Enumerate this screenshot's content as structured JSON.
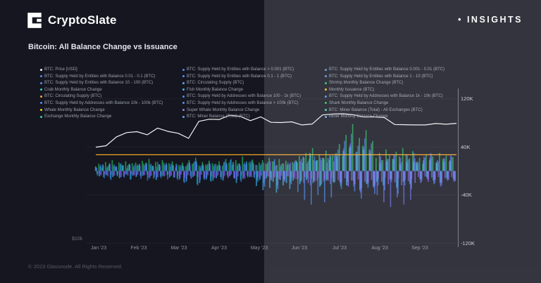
{
  "header": {
    "brand": "CryptoSlate",
    "insights_label": "• INSIGHTS"
  },
  "title": "Bitcoin: All Balance Change vs Issuance",
  "footer": {
    "copyright": "© 2023 Glassnode. All Rights Reserved."
  },
  "legend": {
    "columns": [
      {
        "items": [
          {
            "label": "BTC: Price [USD]",
            "color": "#f4f5f7"
          },
          {
            "label": "BTC: Supply Held by Entities with Balance 0.01 - 0.1 (BTC)",
            "color": "#5b8def"
          },
          {
            "label": "BTC: Supply Held by Entities with Balance 10 - 100 (BTC)",
            "color": "#5b8def"
          },
          {
            "label": "Crab Monthly Balance Change",
            "color": "#2dd4bf"
          },
          {
            "label": "BTC: Circulating Supply (BTC)",
            "color": "#f2a33c"
          },
          {
            "label": "BTC: Supply Held by Addresses with Balance 10k - 100k (BTC)",
            "color": "#5b8def"
          },
          {
            "label": "Whale Monthly Balance Change",
            "color": "#facc15"
          },
          {
            "label": "Exchange Monthly Balance Change",
            "color": "#2dd4bf"
          }
        ]
      },
      {
        "items": [
          {
            "label": "BTC: Supply Held by Entities with Balance > 0.001 (BTC)",
            "color": "#5b8def"
          },
          {
            "label": "BTC: Supply Held by Entities with Balance 0.1 - 1 (BTC)",
            "color": "#5b8def"
          },
          {
            "label": "BTC: Circulating Supply (BTC)",
            "color": "#60a5fa"
          },
          {
            "label": "Fish Monthly Balance Change",
            "color": "#38bdf8"
          },
          {
            "label": "BTC: Supply Held by Addresses with Balance 100 - 1k (BTC)",
            "color": "#5b8def"
          },
          {
            "label": "BTC: Supply Held by Addresses with Balance > 100k (BTC)",
            "color": "#5b8def"
          },
          {
            "label": "Super Whale Monthly Balance Change",
            "color": "#818cf8"
          },
          {
            "label": "BTC: Miner Balance (Total) (BTC)",
            "color": "#60a5fa"
          }
        ]
      },
      {
        "items": [
          {
            "label": "BTC: Supply Held by Entities with Balance 0.001 - 0.01 (BTC)",
            "color": "#5b8def"
          },
          {
            "label": "BTC: Supply Held by Entities with Balance 1 - 10 (BTC)",
            "color": "#5b8def"
          },
          {
            "label": "Shrimp Monthly Balance Change (BTC)",
            "color": "#22c55e"
          },
          {
            "label": "Monthly Issuance (BTC)",
            "color": "#fbbf24"
          },
          {
            "label": "BTC: Supply Held by Addresses with Balance 1k - 10k (BTC)",
            "color": "#5b8def"
          },
          {
            "label": "Shark Monthly Balance Change",
            "color": "#22c55e"
          },
          {
            "label": "BTC: Miner Balance (Total) - All Exchanges (BTC)",
            "color": "#34d399"
          },
          {
            "label": "Miner Monthly Balance Change",
            "color": "#60a5fa"
          }
        ]
      }
    ]
  },
  "chart_data": {
    "type": "mixed-bar-line",
    "title": "Bitcoin: All Balance Change vs Issuance",
    "x_labels": [
      "Jan '23",
      "Feb '23",
      "Mar '23",
      "Apr '23",
      "May '23",
      "Jun '23",
      "Jul '23",
      "Aug '23",
      "Sep '23"
    ],
    "y_tick_labels": [
      "120K",
      "40K",
      "-40K",
      "-120K"
    ],
    "y_tick_values": [
      120,
      40,
      -40,
      -120
    ],
    "ylim_k": [
      -140,
      140
    ],
    "price_axis_label": "$10k",
    "units": "thousand BTC per month (bars), USD (price line)",
    "issuance": {
      "name": "Monthly Issuance (BTC)",
      "value_k": 27,
      "color": "#f5a623"
    },
    "price": {
      "name": "BTC: Price [USD]",
      "color": "#f4f5f7",
      "values_usd_k": [
        16.6,
        17.2,
        20.9,
        22.7,
        23.1,
        21.8,
        24.6,
        23.2,
        22.4,
        20.3,
        27.4,
        28.3,
        28.2,
        30.0,
        29.5,
        27.7,
        29.3,
        27.0,
        26.9,
        27.2,
        25.9,
        26.3,
        30.1,
        30.5,
        30.6,
        30.2,
        29.2,
        29.3,
        29.0,
        26.1,
        26.0,
        25.9,
        25.9,
        26.5,
        26.2,
        26.6
      ]
    },
    "bar_series": [
      {
        "name": "Shrimp Monthly Balance Change",
        "color": "#22c55e",
        "values": [
          8,
          12,
          6,
          15,
          10,
          18,
          7,
          14,
          9,
          16,
          11,
          13,
          14,
          9,
          17,
          12,
          20,
          8,
          15,
          11,
          18,
          10,
          13,
          16,
          6,
          10,
          14,
          8,
          18,
          12,
          22,
          9,
          15,
          11,
          17,
          13,
          12,
          16,
          9,
          20,
          14,
          10,
          18,
          13,
          24,
          11,
          15,
          19,
          10,
          14,
          18,
          12,
          22,
          16,
          9,
          20,
          13,
          17,
          11,
          15,
          18,
          25,
          14,
          30,
          20,
          38,
          16,
          28,
          22,
          34,
          19,
          26,
          30,
          45,
          25,
          60,
          38,
          78,
          32,
          55,
          42,
          68,
          36,
          50,
          22,
          30,
          18,
          36,
          26,
          20,
          32,
          24,
          38,
          28,
          21,
          33,
          15,
          22,
          12,
          28,
          18,
          24,
          14,
          30,
          20,
          26,
          16,
          23
        ]
      },
      {
        "name": "Crab Monthly Balance Change",
        "color": "#14b8a6",
        "values": [
          -5,
          8,
          -10,
          6,
          -12,
          9,
          -7,
          11,
          -9,
          5,
          -14,
          7,
          9,
          -8,
          12,
          -6,
          10,
          -13,
          7,
          -9,
          14,
          -7,
          8,
          -11,
          -12,
          7,
          -18,
          10,
          -8,
          14,
          -22,
          6,
          -12,
          9,
          -16,
          8,
          8,
          -10,
          14,
          -7,
          18,
          -12,
          9,
          -15,
          11,
          -8,
          13,
          -10,
          -14,
          9,
          -20,
          12,
          -10,
          16,
          -24,
          8,
          -14,
          10,
          -18,
          12,
          14,
          -18,
          22,
          -12,
          28,
          -16,
          18,
          -24,
          20,
          -14,
          24,
          -20,
          20,
          -25,
          32,
          -18,
          40,
          -22,
          26,
          -30,
          34,
          -20,
          28,
          -24,
          -16,
          12,
          -22,
          15,
          -12,
          18,
          -26,
          10,
          -16,
          13,
          -20,
          14,
          10,
          -12,
          16,
          -8,
          20,
          -14,
          12,
          -18,
          14,
          -10,
          16,
          -12
        ]
      },
      {
        "name": "Fish Monthly Balance Change",
        "color": "#38bdf8",
        "values": [
          6,
          -9,
          11,
          -7,
          13,
          -10,
          8,
          -12,
          10,
          -6,
          12,
          -8,
          -10,
          12,
          -8,
          14,
          -12,
          9,
          -15,
          11,
          -9,
          13,
          -11,
          10,
          12,
          -14,
          9,
          -18,
          14,
          -10,
          16,
          -20,
          11,
          -14,
          13,
          -16,
          -12,
          10,
          -16,
          13,
          -9,
          15,
          -20,
          11,
          -13,
          16,
          -10,
          14,
          -25,
          -15,
          -32,
          -12,
          -28,
          -18,
          -36,
          -14,
          -24,
          -20,
          -30,
          -16,
          16,
          -22,
          24,
          -15,
          30,
          -20,
          18,
          -26,
          22,
          -16,
          26,
          -18,
          24,
          -18,
          34,
          -24,
          42,
          -16,
          28,
          -32,
          36,
          -22,
          30,
          -26,
          -18,
          14,
          -24,
          16,
          -14,
          20,
          -28,
          12,
          -18,
          15,
          -22,
          16,
          12,
          -14,
          18,
          -10,
          22,
          -16,
          14,
          -20,
          16,
          -12,
          18,
          -14
        ]
      },
      {
        "name": "Shark Monthly Balance Change",
        "color": "#3b82f6",
        "values": [
          -8,
          10,
          -12,
          8,
          -15,
          11,
          -9,
          13,
          -11,
          9,
          -14,
          10,
          11,
          -13,
          9,
          -16,
          12,
          -10,
          15,
          -12,
          10,
          -14,
          12,
          -11,
          -15,
          10,
          -20,
          13,
          -11,
          16,
          -24,
          9,
          -15,
          12,
          -18,
          11,
          10,
          -14,
          16,
          -10,
          20,
          -13,
          12,
          -18,
          14,
          -11,
          17,
          -12,
          -18,
          12,
          -26,
          15,
          -14,
          20,
          -30,
          11,
          -18,
          14,
          -22,
          16,
          -35,
          20,
          -48,
          16,
          -56,
          24,
          -40,
          18,
          -52,
          22,
          -44,
          26,
          36,
          -30,
          50,
          -24,
          62,
          -34,
          42,
          -46,
          54,
          -28,
          46,
          -38,
          -24,
          18,
          -32,
          20,
          -18,
          26,
          -38,
          15,
          -24,
          19,
          -30,
          21,
          14,
          -18,
          22,
          -13,
          28,
          -20,
          16,
          -24,
          20,
          -15,
          24,
          -17
        ]
      },
      {
        "name": "Whale Monthly Balance Change",
        "color": "#6366f1",
        "values": [
          5,
          -7,
          9,
          -6,
          11,
          -8,
          6,
          -10,
          8,
          -5,
          10,
          -7,
          -8,
          9,
          -6,
          11,
          -9,
          7,
          -12,
          8,
          -7,
          10,
          -8,
          9,
          9,
          -11,
          7,
          -14,
          10,
          -8,
          12,
          -15,
          8,
          -11,
          10,
          -12,
          -9,
          8,
          -12,
          10,
          -7,
          12,
          -15,
          8,
          -10,
          12,
          -8,
          11,
          10,
          -12,
          14,
          -9,
          16,
          -12,
          10,
          -15,
          12,
          -9,
          14,
          -11,
          -14,
          16,
          -20,
          12,
          -24,
          18,
          -16,
          22,
          -18,
          14,
          -22,
          16,
          28,
          -22,
          38,
          -18,
          46,
          -26,
          32,
          -36,
          40,
          -20,
          34,
          -28,
          -40,
          24,
          -52,
          20,
          -60,
          28,
          -44,
          22,
          -56,
          26,
          -48,
          30,
          16,
          -20,
          24,
          -14,
          30,
          -22,
          18,
          -26,
          22,
          -16,
          26,
          -18
        ]
      },
      {
        "name": "Exchange Monthly Balance Change",
        "color": "#8b5cf6",
        "values": [
          -4,
          -7,
          -5,
          -9,
          -6,
          -8,
          -5,
          -10,
          -6,
          -8,
          -5,
          -7,
          -6,
          -9,
          -7,
          -11,
          -8,
          -6,
          -10,
          -7,
          -9,
          -6,
          -8,
          -10,
          -8,
          -6,
          -11,
          -7,
          -13,
          -8,
          -10,
          -6,
          -12,
          -7,
          -9,
          -11,
          -7,
          -10,
          -8,
          -12,
          -6,
          -11,
          -9,
          -7,
          -13,
          -8,
          -10,
          -6,
          -10,
          -8,
          -14,
          -9,
          -16,
          -10,
          -12,
          -8,
          -15,
          -9,
          -11,
          -13,
          -12,
          -16,
          -10,
          -20,
          -13,
          -18,
          -11,
          -22,
          -14,
          -16,
          -12,
          -18,
          -15,
          -20,
          -12,
          -26,
          -16,
          -22,
          -14,
          -28,
          -18,
          -20,
          -15,
          -24,
          -13,
          -18,
          -11,
          -22,
          -14,
          -19,
          -12,
          -24,
          -15,
          -17,
          -13,
          -20,
          -10,
          -14,
          -9,
          -18,
          -11,
          -15,
          -10,
          -20,
          -12,
          -14,
          -10,
          -16
        ]
      }
    ]
  }
}
